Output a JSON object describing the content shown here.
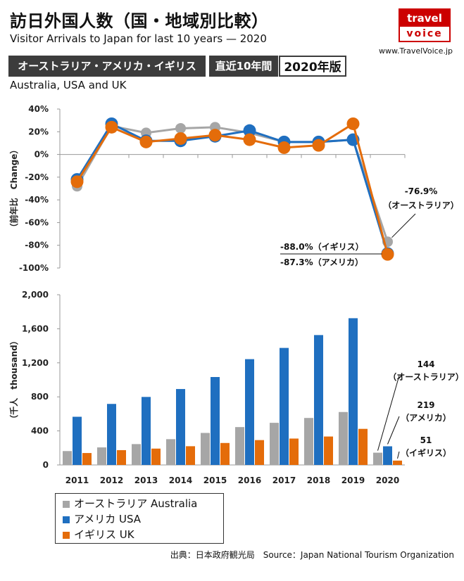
{
  "header": {
    "title": "訪日外国人数（国・地域別比較）",
    "subtitle": "Visitor Arrivals to Japan for last 10 years — 2020",
    "logo_line1": "travel",
    "logo_line2": "voice",
    "site": "www.TravelVoice.jp",
    "badge_countries": "オーストラリア・アメリカ・イギリス",
    "badge_period": "直近10年間",
    "badge_edition": "2020年版",
    "region_en": "Australia, USA and UK"
  },
  "source": "出典：日本政府観光局　Source：Japan  National Tourism  Organization",
  "colors": {
    "australia": "#a6a6a6",
    "usa": "#1f6fc0",
    "uk": "#e46c0a"
  },
  "legend": [
    {
      "label": "オーストラリア Australia",
      "color": "#a6a6a6"
    },
    {
      "label": "アメリカ USA",
      "color": "#1f6fc0"
    },
    {
      "label": "イギリス UK",
      "color": "#e46c0a"
    }
  ],
  "chart_data": [
    {
      "type": "line",
      "ylabel": "（前年比　Change）",
      "x": [
        "2011",
        "2012",
        "2013",
        "2014",
        "2015",
        "2016",
        "2017",
        "2018",
        "2019",
        "2020"
      ],
      "ylim": [
        -100,
        40
      ],
      "yticks": [
        "40%",
        "20%",
        "0%",
        "-20%",
        "-40%",
        "-60%",
        "-80%",
        "-100%"
      ],
      "grid": false,
      "series": [
        {
          "name": "オーストラリア",
          "values": [
            -28,
            25,
            19,
            23,
            24,
            19,
            11,
            11,
            13,
            -76.9
          ]
        },
        {
          "name": "アメリカ",
          "values": [
            -22,
            27,
            12,
            12,
            16,
            21,
            11,
            11,
            13,
            -87.3
          ]
        },
        {
          "name": "イギリス",
          "values": [
            -24,
            24,
            11,
            14,
            17,
            13,
            6,
            8,
            27,
            -88.0
          ]
        }
      ],
      "annotations": [
        {
          "text": "-76.9%",
          "sub": "（オーストラリア）"
        },
        {
          "text": "-88.0%（イギリス）"
        },
        {
          "text": "-87.3%（アメリカ）"
        }
      ]
    },
    {
      "type": "bar",
      "ylabel": "（千人　thousand）",
      "categories": [
        "2011",
        "2012",
        "2013",
        "2014",
        "2015",
        "2016",
        "2017",
        "2018",
        "2019",
        "2020"
      ],
      "ylim": [
        0,
        2000
      ],
      "yticks": [
        "2,000",
        "1,600",
        "1,200",
        "800",
        "400",
        "0"
      ],
      "grid": false,
      "series": [
        {
          "name": "オーストラリア Australia",
          "values": [
            163,
            206,
            245,
            303,
            376,
            445,
            495,
            552,
            622,
            144
          ]
        },
        {
          "name": "アメリカ USA",
          "values": [
            566,
            717,
            799,
            892,
            1033,
            1243,
            1375,
            1526,
            1724,
            219
          ]
        },
        {
          "name": "イギリス UK",
          "values": [
            140,
            174,
            192,
            220,
            258,
            292,
            310,
            334,
            424,
            51
          ]
        }
      ],
      "annotations": [
        {
          "value": "144",
          "label": "（オーストラリア）"
        },
        {
          "value": "219",
          "label": "（アメリカ）"
        },
        {
          "value": "51",
          "label": "（イギリス）"
        }
      ]
    }
  ]
}
